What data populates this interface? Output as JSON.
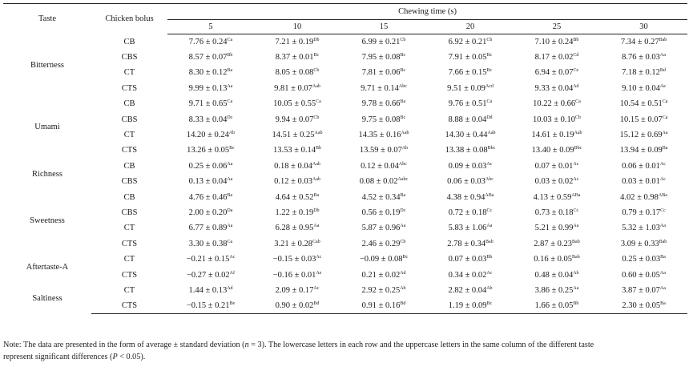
{
  "table": {
    "col_taste": "Taste",
    "col_bolus": "Chicken bolus",
    "col_chew": "Chewing time (s)",
    "times": [
      "5",
      "10",
      "15",
      "20",
      "25",
      "30"
    ],
    "groups": [
      {
        "taste": "Bitterness",
        "rows": [
          {
            "bolus": "CB",
            "cells": [
              [
                "7.76 ± 0.24",
                "Ca"
              ],
              [
                "7.21 ± 0.19",
                "Db"
              ],
              [
                "6.99 ± 0.21",
                "Cb"
              ],
              [
                "6.92 ± 0.21",
                "Cb"
              ],
              [
                "7.10 ± 0.24",
                "Bb"
              ],
              [
                "7.34 ± 0.27",
                "Bab"
              ]
            ]
          },
          {
            "bolus": "CBS",
            "cells": [
              [
                "8.57 ± 0.07",
                "Bb"
              ],
              [
                "8.37 ± 0.01",
                "Bc"
              ],
              [
                "7.95 ± 0.08",
                "Bc"
              ],
              [
                "7.91 ± 0.05",
                "Bc"
              ],
              [
                "8.17 ± 0.02",
                "Cd"
              ],
              [
                "8.76 ± 0.03",
                "Aa"
              ]
            ]
          },
          {
            "bolus": "CT",
            "cells": [
              [
                "8.30 ± 0.12",
                "Ba"
              ],
              [
                "8.05 ± 0.08",
                "Cb"
              ],
              [
                "7.81 ± 0.06",
                "Bc"
              ],
              [
                "7.66 ± 0.15",
                "Bc"
              ],
              [
                "6.94 ± 0.07",
                "Ce"
              ],
              [
                "7.18 ± 0.12",
                "Bd"
              ]
            ]
          },
          {
            "bolus": "CTS",
            "cells": [
              [
                "9.99 ± 0.13",
                "Aa"
              ],
              [
                "9.81 ± 0.07",
                "Aab"
              ],
              [
                "9.71 ± 0.14",
                "Abc"
              ],
              [
                "9.51 ± 0.09",
                "Acd"
              ],
              [
                "9.33 ± 0.04",
                "Ad"
              ],
              [
                "9.10 ± 0.04",
                "Ae"
              ]
            ]
          }
        ]
      },
      {
        "taste": "Umami",
        "rows": [
          {
            "bolus": "CB",
            "cells": [
              [
                "9.71 ± 0.65",
                "Ca"
              ],
              [
                "10.05 ± 0.55",
                "Ca"
              ],
              [
                "9.78 ± 0.66",
                "Ba"
              ],
              [
                "9.76 ± 0.51",
                "Ca"
              ],
              [
                "10.22 ± 0.66",
                "Ca"
              ],
              [
                "10.54 ± 0.51",
                "Ca"
              ]
            ]
          },
          {
            "bolus": "CBS",
            "cells": [
              [
                "8.33 ± 0.04",
                "Dc"
              ],
              [
                "9.94 ± 0.07",
                "Cb"
              ],
              [
                "9.75 ± 0.08",
                "Bc"
              ],
              [
                "8.88 ± 0.04",
                "Dd"
              ],
              [
                "10.03 ± 0.10",
                "Cb"
              ],
              [
                "10.15 ± 0.07",
                "Ca"
              ]
            ]
          },
          {
            "bolus": "CT",
            "cells": [
              [
                "14.20 ± 0.24",
                "Ab"
              ],
              [
                "14.51 ± 0.25",
                "Aab"
              ],
              [
                "14.35 ± 0.16",
                "Aab"
              ],
              [
                "14.30 ± 0.44",
                "Aab"
              ],
              [
                "14.61 ± 0.19",
                "Aab"
              ],
              [
                "15.12 ± 0.69",
                "Aa"
              ]
            ]
          },
          {
            "bolus": "CTS",
            "cells": [
              [
                "13.26 ± 0.05",
                "Bc"
              ],
              [
                "13.53 ± 0.14",
                "Bb"
              ],
              [
                "13.59 ± 0.07",
                "Ab"
              ],
              [
                "13.38 ± 0.08",
                "Bbc"
              ],
              [
                "13.40 ± 0.09",
                "Bbc"
              ],
              [
                "13.94 ± 0.09",
                "Ba"
              ]
            ]
          }
        ]
      },
      {
        "taste": "Richness",
        "rows": [
          {
            "bolus": "CB",
            "cells": [
              [
                "0.25 ± 0.06",
                "Aa"
              ],
              [
                "0.18 ± 0.04",
                "Aab"
              ],
              [
                "0.12 ± 0.04",
                "Abc"
              ],
              [
                "0.09 ± 0.03",
                "Ac"
              ],
              [
                "0.07 ± 0.01",
                "Ac"
              ],
              [
                "0.06 ± 0.01",
                "Ac"
              ]
            ]
          },
          {
            "bolus": "CBS",
            "cells": [
              [
                "0.13 ± 0.04",
                "Aa"
              ],
              [
                "0.12 ± 0.03",
                "Aab"
              ],
              [
                "0.08 ± 0.02",
                "Aabc"
              ],
              [
                "0.06 ± 0.03",
                "Abc"
              ],
              [
                "0.03 ± 0.02",
                "Ac"
              ],
              [
                "0.03 ± 0.01",
                "Ac"
              ]
            ]
          }
        ]
      },
      {
        "taste": "Sweetness",
        "rows": [
          {
            "bolus": "CB",
            "cells": [
              [
                "4.76 ± 0.46",
                "Ba"
              ],
              [
                "4.64 ± 0.52",
                "Ba"
              ],
              [
                "4.52 ± 0.34",
                "Ba"
              ],
              [
                "4.38 ± 0.94",
                "ABa"
              ],
              [
                "4.13 ± 0.59",
                "ABa"
              ],
              [
                "4.02 ± 0.98",
                "ABa"
              ]
            ]
          },
          {
            "bolus": "CBS",
            "cells": [
              [
                "2.00 ± 0.20",
                "Da"
              ],
              [
                "1.22 ± 0.19",
                "Db"
              ],
              [
                "0.56 ± 0.19",
                "Dc"
              ],
              [
                "0.72 ± 0.18",
                "Cc"
              ],
              [
                "0.73 ± 0.18",
                "Cc"
              ],
              [
                "0.79 ± 0.17",
                "Cc"
              ]
            ]
          },
          {
            "bolus": "CT",
            "cells": [
              [
                "6.77 ± 0.89",
                "Aa"
              ],
              [
                "6.28 ± 0.95",
                "Aa"
              ],
              [
                "5.87 ± 0.96",
                "Aa"
              ],
              [
                "5.83 ± 1.06",
                "Aa"
              ],
              [
                "5.21 ± 0.99",
                "Aa"
              ],
              [
                "5.32 ± 1.03",
                "Aa"
              ]
            ]
          },
          {
            "bolus": "CTS",
            "cells": [
              [
                "3.30 ± 0.38",
                "Ca"
              ],
              [
                "3.21 ± 0.28",
                "Cab"
              ],
              [
                "2.46 ± 0.29",
                "Cb"
              ],
              [
                "2.78 ± 0.34",
                "Bab"
              ],
              [
                "2.87 ± 0.23",
                "Bab"
              ],
              [
                "3.09 ± 0.33",
                "Bab"
              ]
            ]
          }
        ]
      },
      {
        "taste": "Aftertaste-A",
        "rows": [
          {
            "bolus": "CT",
            "cells": [
              [
                "−0.21 ± 0.15",
                "Ac"
              ],
              [
                "−0.15 ± 0.03",
                "Ac"
              ],
              [
                "−0.09 ± 0.08",
                "Bc"
              ],
              [
                "0.07 ± 0.03",
                "Bb"
              ],
              [
                "0.16 ± 0.05",
                "Bab"
              ],
              [
                "0.25 ± 0.03",
                "Ba"
              ]
            ]
          },
          {
            "bolus": "CTS",
            "cells": [
              [
                "−0.27 ± 0.02",
                "Af"
              ],
              [
                "−0.16 ± 0.01",
                "Ae"
              ],
              [
                "0.21 ± 0.02",
                "Ad"
              ],
              [
                "0.34 ± 0.02",
                "Ac"
              ],
              [
                "0.48 ± 0.04",
                "Ab"
              ],
              [
                "0.60 ± 0.05",
                "Aa"
              ]
            ]
          }
        ]
      },
      {
        "taste": "Saltiness",
        "rows": [
          {
            "bolus": "CT",
            "cells": [
              [
                "1.44 ± 0.13",
                "Ad"
              ],
              [
                "2.09 ± 0.17",
                "Ac"
              ],
              [
                "2.92 ± 0.25",
                "Ab"
              ],
              [
                "2.82 ± 0.04",
                "Ab"
              ],
              [
                "3.86 ± 0.25",
                "Aa"
              ],
              [
                "3.87 ± 0.07",
                "Aa"
              ]
            ]
          },
          {
            "bolus": "CTS",
            "cells": [
              [
                "−0.15 ± 0.21",
                "Be"
              ],
              [
                "0.90 ± 0.02",
                "Bd"
              ],
              [
                "0.91 ± 0.16",
                "Bd"
              ],
              [
                "1.19 ± 0.09",
                "Bc"
              ],
              [
                "1.66 ± 0.05",
                "Bb"
              ],
              [
                "2.30 ± 0.05",
                "Ba"
              ]
            ]
          }
        ]
      }
    ]
  },
  "note": {
    "prefix": "Note: The data are presented in the form of average ± standard deviation (",
    "n_var": "n",
    "n_rest": " = 3). The lowercase letters in each row and the uppercase letters in the same column of the different taste",
    "line2_start": "represent significant differences (",
    "p_var": "P",
    "p_rest": " < 0.05)."
  }
}
